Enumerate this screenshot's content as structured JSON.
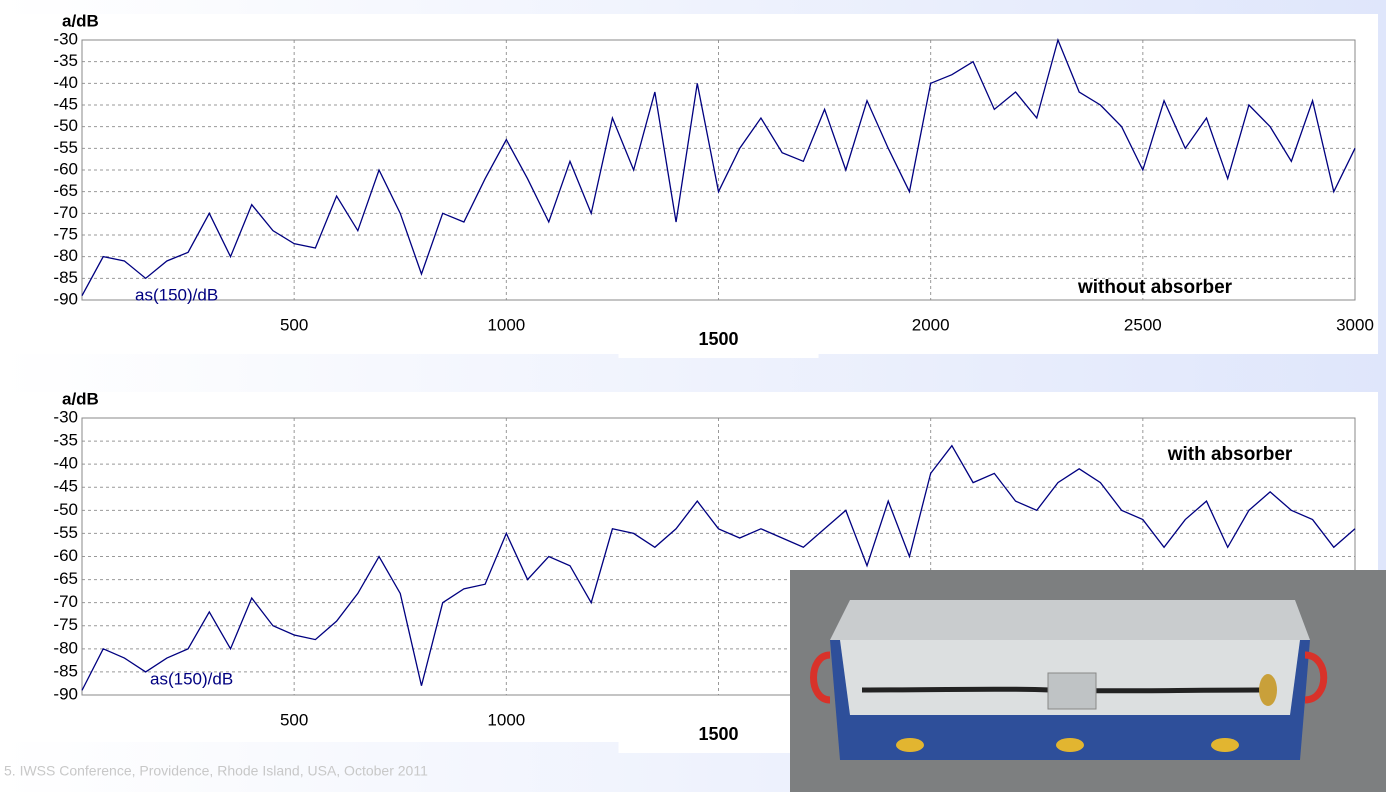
{
  "chart_data": [
    {
      "type": "line",
      "y_label": "a/dB",
      "annotation": "without absorber",
      "x": [
        0,
        50,
        100,
        150,
        200,
        250,
        300,
        350,
        400,
        450,
        500,
        550,
        600,
        650,
        700,
        750,
        800,
        850,
        900,
        950,
        1000,
        1050,
        1100,
        1150,
        1200,
        1250,
        1300,
        1350,
        1400,
        1450,
        1500,
        1550,
        1600,
        1650,
        1700,
        1750,
        1800,
        1850,
        1900,
        1950,
        2000,
        2050,
        2100,
        2150,
        2200,
        2250,
        2300,
        2350,
        2400,
        2450,
        2500,
        2550,
        2600,
        2650,
        2700,
        2750,
        2800,
        2850,
        2900,
        2950,
        3000
      ],
      "series": [
        {
          "name": "as(150)/dB",
          "color": "#000080",
          "values": [
            -89,
            -80,
            -81,
            -85,
            -81,
            -79,
            -70,
            -80,
            -68,
            -74,
            -77,
            -78,
            -66,
            -74,
            -60,
            -70,
            -84,
            -70,
            -72,
            -62,
            -53,
            -62,
            -72,
            -58,
            -70,
            -48,
            -60,
            -42,
            -72,
            -40,
            -65,
            -55,
            -48,
            -56,
            -58,
            -46,
            -60,
            -44,
            -55,
            -65,
            -40,
            -38,
            -35,
            -46,
            -42,
            -48,
            -30,
            -42,
            -45,
            -50,
            -60,
            -44,
            -55,
            -48,
            -62,
            -45,
            -50,
            -58,
            -44,
            -65,
            -55
          ]
        }
      ],
      "xlim": [
        0,
        3000
      ],
      "xticks": [
        500,
        1000,
        1500,
        2000,
        2500,
        3000
      ],
      "ylim": [
        -90,
        -30
      ],
      "yticks": [
        -30,
        -35,
        -40,
        -45,
        -50,
        -55,
        -60,
        -65,
        -70,
        -75,
        -80,
        -85,
        -90
      ],
      "grid": true
    },
    {
      "type": "line",
      "y_label": "a/dB",
      "annotation": "with absorber",
      "x": [
        0,
        50,
        100,
        150,
        200,
        250,
        300,
        350,
        400,
        450,
        500,
        550,
        600,
        650,
        700,
        750,
        800,
        850,
        900,
        950,
        1000,
        1050,
        1100,
        1150,
        1200,
        1250,
        1300,
        1350,
        1400,
        1450,
        1500,
        1550,
        1600,
        1650,
        1700,
        1750,
        1800,
        1850,
        1900,
        1950,
        2000,
        2050,
        2100,
        2150,
        2200,
        2250,
        2300,
        2350,
        2400,
        2450,
        2500,
        2550,
        2600,
        2650,
        2700,
        2750,
        2800,
        2850,
        2900,
        2950,
        3000
      ],
      "series": [
        {
          "name": "as(150)/dB",
          "color": "#000080",
          "values": [
            -89,
            -80,
            -82,
            -85,
            -82,
            -80,
            -72,
            -80,
            -69,
            -75,
            -77,
            -78,
            -74,
            -68,
            -60,
            -68,
            -88,
            -70,
            -67,
            -66,
            -55,
            -65,
            -60,
            -62,
            -70,
            -54,
            -55,
            -58,
            -54,
            -48,
            -54,
            -56,
            -54,
            -56,
            -58,
            -54,
            -50,
            -62,
            -48,
            -60,
            -42,
            -36,
            -44,
            -42,
            -48,
            -50,
            -44,
            -41,
            -44,
            -50,
            -52,
            -58,
            -52,
            -48,
            -58,
            -50,
            -46,
            -50,
            -52,
            -58,
            -54
          ]
        }
      ],
      "xlim": [
        0,
        3000
      ],
      "xticks": [
        500,
        1000,
        1500,
        2000,
        2500,
        3000
      ],
      "ylim": [
        -90,
        -30
      ],
      "yticks": [
        -30,
        -35,
        -40,
        -45,
        -50,
        -55,
        -60,
        -65,
        -70,
        -75,
        -80,
        -85,
        -90
      ],
      "grid": true
    }
  ],
  "footer": "5. IWSS Conference, Providence, Rhode Island, USA, October 2011"
}
